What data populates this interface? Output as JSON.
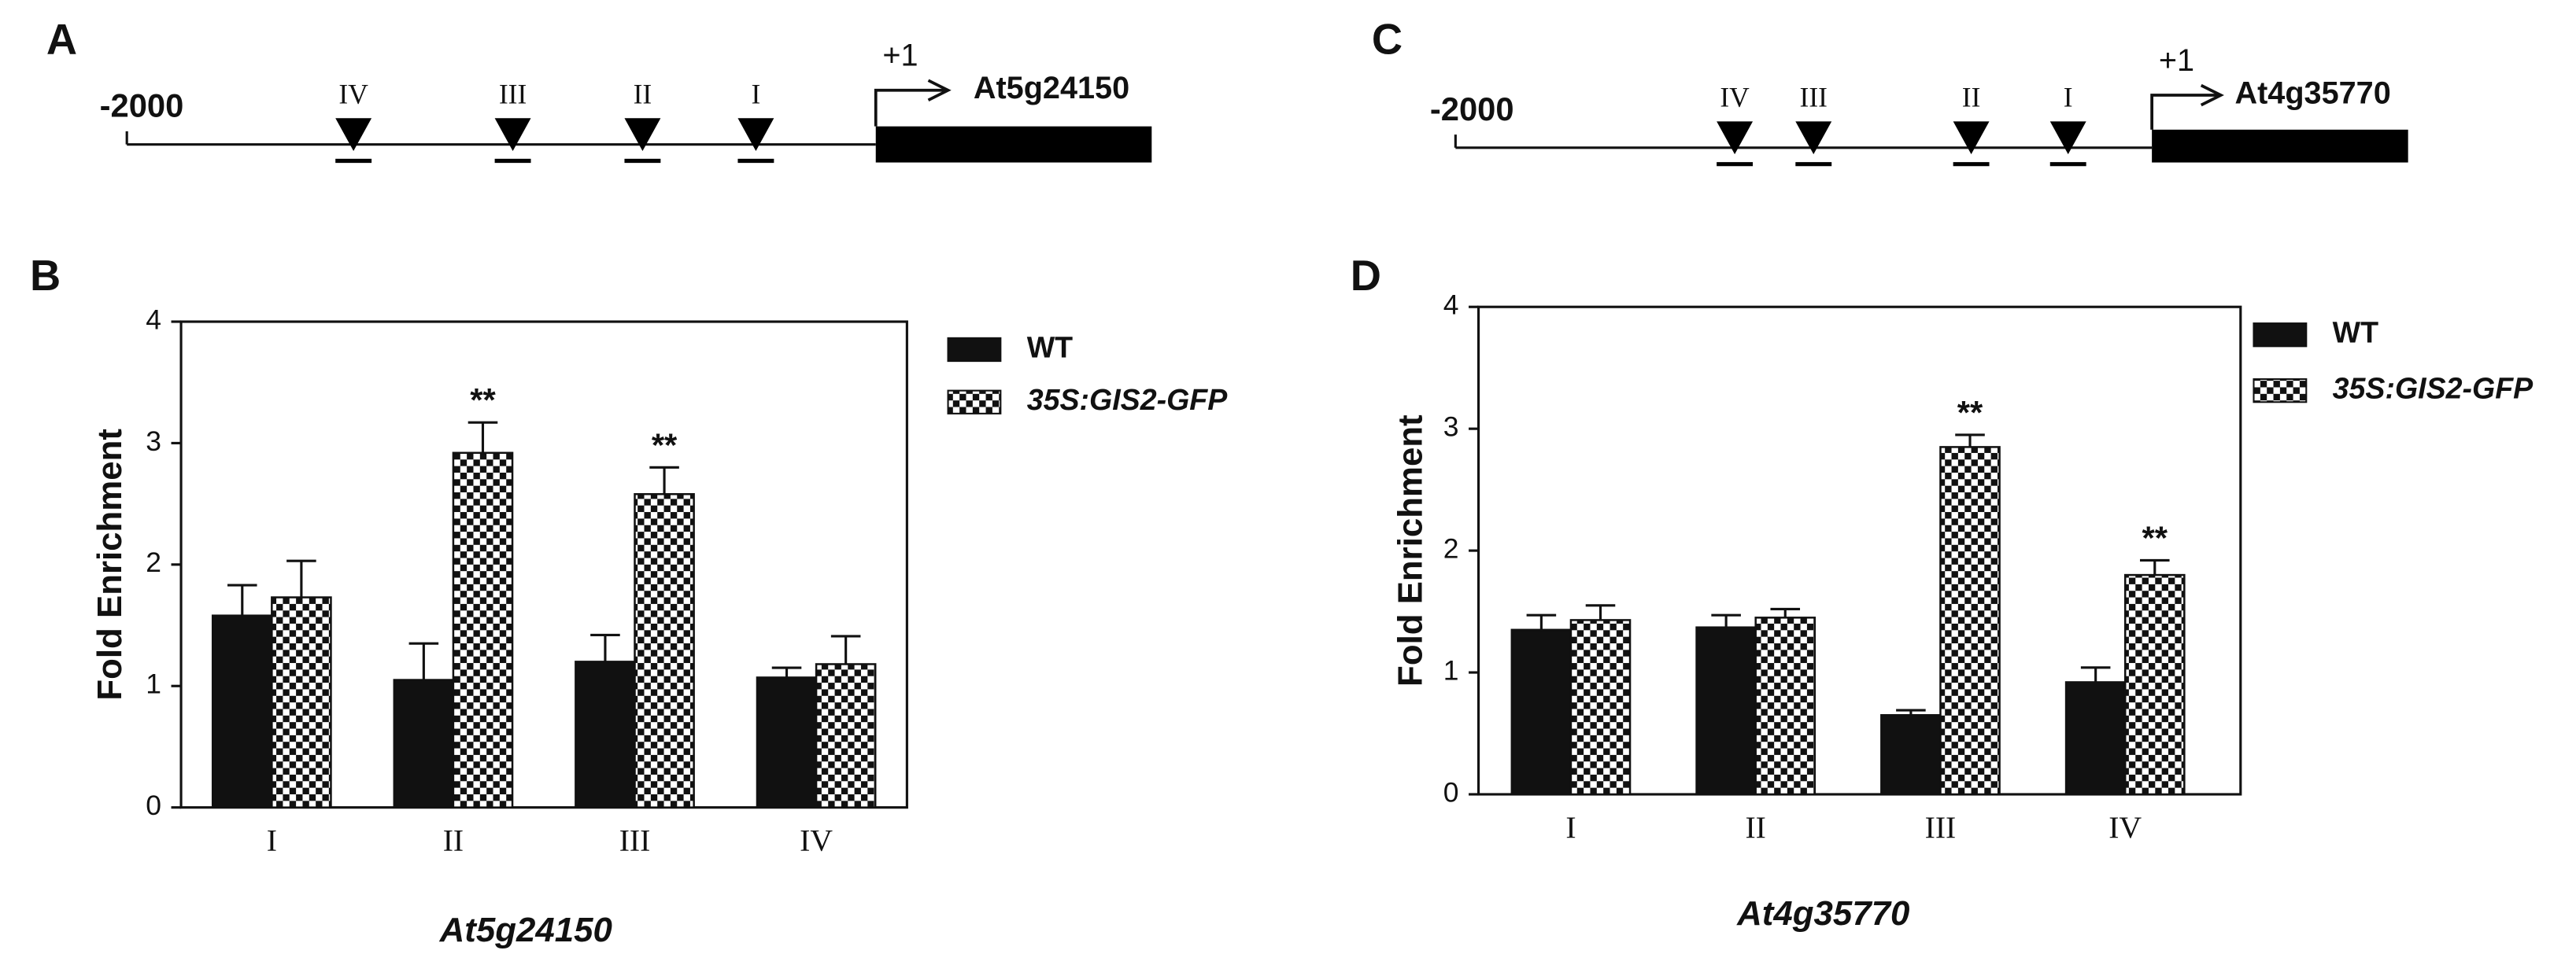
{
  "panel_labels": [
    "A",
    "B",
    "C",
    "D"
  ],
  "diagrams": [
    {
      "start": "-2000",
      "tss": "+1",
      "gene": "At5g24150",
      "sites": [
        "IV",
        "III",
        "II",
        "I"
      ]
    },
    {
      "start": "-2000",
      "tss": "+1",
      "gene": "At4g35770",
      "sites": [
        "IV",
        "III",
        "II",
        "I"
      ]
    }
  ],
  "chart_data": [
    {
      "type": "bar",
      "categories": [
        "I",
        "II",
        "III",
        "IV"
      ],
      "xlabel": "At5g24150",
      "ylabel": "Fold Enrichment",
      "ylim": [
        0,
        4
      ],
      "yticks": [
        0,
        1,
        2,
        3,
        4
      ],
      "series": [
        {
          "name": "WT",
          "color": "#111111",
          "values": [
            1.58,
            1.05,
            1.2,
            1.07
          ],
          "errors": [
            0.25,
            0.3,
            0.22,
            0.08
          ]
        },
        {
          "name": "35S:GIS2-GFP",
          "color": "#111111",
          "pattern": "checker",
          "values": [
            1.73,
            2.92,
            2.58,
            1.18
          ],
          "errors": [
            0.3,
            0.25,
            0.22,
            0.23
          ],
          "annotations": [
            null,
            "**",
            "**",
            null
          ]
        }
      ]
    },
    {
      "type": "bar",
      "categories": [
        "I",
        "II",
        "III",
        "IV"
      ],
      "xlabel": "At4g35770",
      "ylabel": "Fold Enrichment",
      "ylim": [
        0,
        4
      ],
      "yticks": [
        0,
        1,
        2,
        3,
        4
      ],
      "series": [
        {
          "name": "WT",
          "color": "#111111",
          "values": [
            1.35,
            1.37,
            0.65,
            0.92
          ],
          "errors": [
            0.12,
            0.1,
            0.04,
            0.12
          ]
        },
        {
          "name": "35S:GIS2-GFP",
          "color": "#111111",
          "pattern": "checker",
          "values": [
            1.43,
            1.45,
            2.85,
            1.8
          ],
          "errors": [
            0.12,
            0.07,
            0.1,
            0.12
          ],
          "annotations": [
            null,
            null,
            "**",
            "**"
          ]
        }
      ]
    }
  ]
}
